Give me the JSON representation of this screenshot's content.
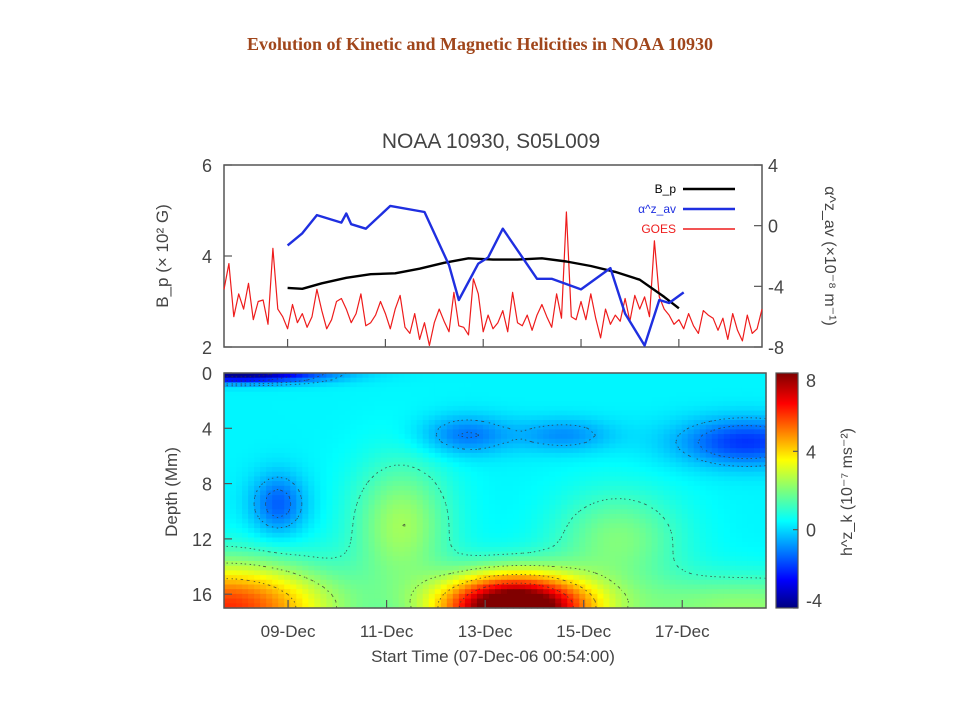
{
  "slide": {
    "title": "Evolution of Kinetic and Magnetic Helicities in NOAA 10930"
  },
  "chart_data": [
    {
      "type": "line",
      "title": "NOAA 10930, S05L009",
      "xlim": [
        0,
        11
      ],
      "ylabel": "B_p (× 10² G)",
      "ylim": [
        2,
        6
      ],
      "yticks": [
        2,
        4,
        6
      ],
      "y2label": "α^z_av (×10⁻⁸ m⁻¹)",
      "y2lim": [
        -8,
        4
      ],
      "y2ticks": [
        -8,
        -4,
        0,
        4
      ],
      "legend": {
        "placement": "top-right",
        "entries": [
          "B_p",
          "α^z_av",
          "GOES"
        ]
      },
      "series": [
        {
          "name": "B_p",
          "axis": "left",
          "color": "#000000",
          "x": [
            1.3,
            1.6,
            2.0,
            2.5,
            3.0,
            3.5,
            4.0,
            4.5,
            5.0,
            5.5,
            6.0,
            6.5,
            7.0,
            7.5,
            8.0,
            8.5,
            9.0,
            9.3
          ],
          "values": [
            3.3,
            3.28,
            3.4,
            3.52,
            3.6,
            3.62,
            3.72,
            3.85,
            3.95,
            3.92,
            3.92,
            3.95,
            3.88,
            3.78,
            3.65,
            3.48,
            3.1,
            2.85
          ]
        },
        {
          "name": "α^z_av",
          "axis": "right",
          "color": "#1f2fe0",
          "x": [
            1.3,
            1.6,
            1.9,
            2.2,
            2.4,
            2.5,
            2.6,
            2.9,
            3.4,
            4.1,
            4.6,
            4.8,
            5.2,
            5.4,
            5.7,
            6.4,
            6.7,
            7.3,
            7.9,
            8.2,
            8.6,
            8.9,
            9.1,
            9.4
          ],
          "values": [
            -1.3,
            -0.5,
            0.7,
            0.4,
            0.2,
            0.8,
            0.1,
            -0.2,
            1.3,
            0.9,
            -2.6,
            -4.9,
            -2.5,
            -2.1,
            -0.2,
            -3.5,
            -3.5,
            -4.2,
            -2.8,
            -5.8,
            -7.9,
            -4.9,
            -5.1,
            -4.4
          ]
        },
        {
          "name": "GOES",
          "axis": "right",
          "color": "#ee1c1c",
          "x": [
            0.0,
            0.1,
            0.2,
            0.3,
            0.4,
            0.5,
            0.6,
            0.7,
            0.8,
            0.9,
            1.0,
            1.1,
            1.2,
            1.3,
            1.4,
            1.5,
            1.6,
            1.7,
            1.8,
            1.9,
            2.0,
            2.1,
            2.2,
            2.3,
            2.4,
            2.5,
            2.6,
            2.7,
            2.8,
            2.9,
            3.0,
            3.1,
            3.2,
            3.3,
            3.4,
            3.5,
            3.6,
            3.7,
            3.8,
            3.9,
            4.0,
            4.1,
            4.2,
            4.3,
            4.4,
            4.5,
            4.6,
            4.7,
            4.8,
            4.9,
            5.0,
            5.1,
            5.2,
            5.3,
            5.4,
            5.5,
            5.6,
            5.7,
            5.8,
            5.9,
            6.0,
            6.1,
            6.2,
            6.3,
            6.4,
            6.5,
            6.6,
            6.7,
            6.8,
            6.9,
            7.0,
            7.1,
            7.2,
            7.3,
            7.4,
            7.5,
            7.6,
            7.7,
            7.8,
            7.9,
            8.0,
            8.1,
            8.2,
            8.3,
            8.4,
            8.5,
            8.6,
            8.7,
            8.8,
            8.9,
            9.0,
            9.1,
            9.2,
            9.3,
            9.4,
            9.5,
            9.6,
            9.7,
            9.8,
            9.9,
            10.0,
            10.1,
            10.2,
            10.3,
            10.4,
            10.5,
            10.6,
            10.7,
            10.8,
            10.9,
            11.0
          ],
          "values": [
            -4.2,
            -2.5,
            -6.0,
            -4.5,
            -5.5,
            -3.8,
            -6.2,
            -5.0,
            -4.9,
            -6.5,
            -1.5,
            -5.5,
            -6.0,
            -6.8,
            -5.2,
            -6.4,
            -5.8,
            -6.7,
            -6.0,
            -4.2,
            -5.6,
            -6.8,
            -6.2,
            -5.0,
            -4.8,
            -5.5,
            -6.4,
            -5.8,
            -4.5,
            -6.6,
            -6.4,
            -5.9,
            -5.0,
            -5.8,
            -6.8,
            -5.5,
            -4.6,
            -6.7,
            -7.1,
            -5.8,
            -7.5,
            -6.4,
            -7.9,
            -6.4,
            -5.5,
            -6.3,
            -7.0,
            -4.4,
            -6.6,
            -6.7,
            -7.2,
            -3.5,
            -4.5,
            -7.0,
            -5.9,
            -6.8,
            -6.4,
            -5.6,
            -7.0,
            -4.4,
            -6.4,
            -6.6,
            -5.9,
            -6.9,
            -5.9,
            -5.2,
            -6.0,
            -6.7,
            -4.5,
            -6.1,
            0.9,
            -6.0,
            -6.2,
            -5.0,
            -6.2,
            -4.5,
            -6.1,
            -7.4,
            -5.5,
            -6.5,
            -5.9,
            -6.3,
            -4.8,
            -6.3,
            -4.6,
            -5.5,
            -4.7,
            -6.0,
            -1.0,
            -4.7,
            -5.5,
            -5.9,
            -6.5,
            -6.2,
            -6.8,
            -5.8,
            -6.6,
            -7.1,
            -5.6,
            -5.9,
            -6.1,
            -6.9,
            -6.1,
            -7.5,
            -5.8,
            -6.9,
            -7.6,
            -5.9,
            -7.1,
            -6.8,
            -5.5
          ]
        }
      ]
    },
    {
      "type": "heatmap",
      "xlabel": "Start Time (07-Dec-06 00:54:00)",
      "xlim": [
        0,
        11
      ],
      "xticks": [
        1.3,
        3.3,
        5.3,
        7.3,
        9.3
      ],
      "xticklabels": [
        "09-Dec",
        "11-Dec",
        "13-Dec",
        "15-Dec",
        "17-Dec"
      ],
      "ylabel": "Depth (Mm)",
      "ylim": [
        0,
        17
      ],
      "yticks": [
        0,
        4,
        8,
        12,
        16
      ],
      "colorbar": {
        "label": "h^z_k (10⁻⁷ ms⁻²)",
        "range": [
          -4,
          8
        ],
        "ticks": [
          -4,
          0,
          4,
          8
        ]
      },
      "background_value": 0.4,
      "features": [
        {
          "x": 5.9,
          "depth": 17,
          "sx": 1.5,
          "sy": 2.4,
          "amp": 9.6
        },
        {
          "x": 0.0,
          "depth": 17,
          "sx": 2.2,
          "sy": 3.2,
          "amp": 5.6
        },
        {
          "x": 10.6,
          "depth": 17,
          "sx": 2.8,
          "sy": 2.4,
          "amp": 1.8
        },
        {
          "x": 3.6,
          "depth": 11,
          "sx": 1.0,
          "sy": 4.6,
          "amp": 2.0
        },
        {
          "x": 8.0,
          "depth": 12,
          "sx": 1.3,
          "sy": 3.5,
          "amp": 1.6
        },
        {
          "x": 0.3,
          "depth": 0.1,
          "sx": 1.7,
          "sy": 0.6,
          "amp": -4.3
        },
        {
          "x": 10.6,
          "depth": 5.0,
          "sx": 1.4,
          "sy": 1.7,
          "amp": -2.3
        },
        {
          "x": 1.1,
          "depth": 9.5,
          "sx": 0.55,
          "sy": 2.2,
          "amp": -1.8
        },
        {
          "x": 4.9,
          "depth": 4.5,
          "sx": 0.9,
          "sy": 1.4,
          "amp": -1.5
        },
        {
          "x": 6.9,
          "depth": 4.5,
          "sx": 1.0,
          "sy": 1.2,
          "amp": -1.2
        }
      ]
    }
  ]
}
